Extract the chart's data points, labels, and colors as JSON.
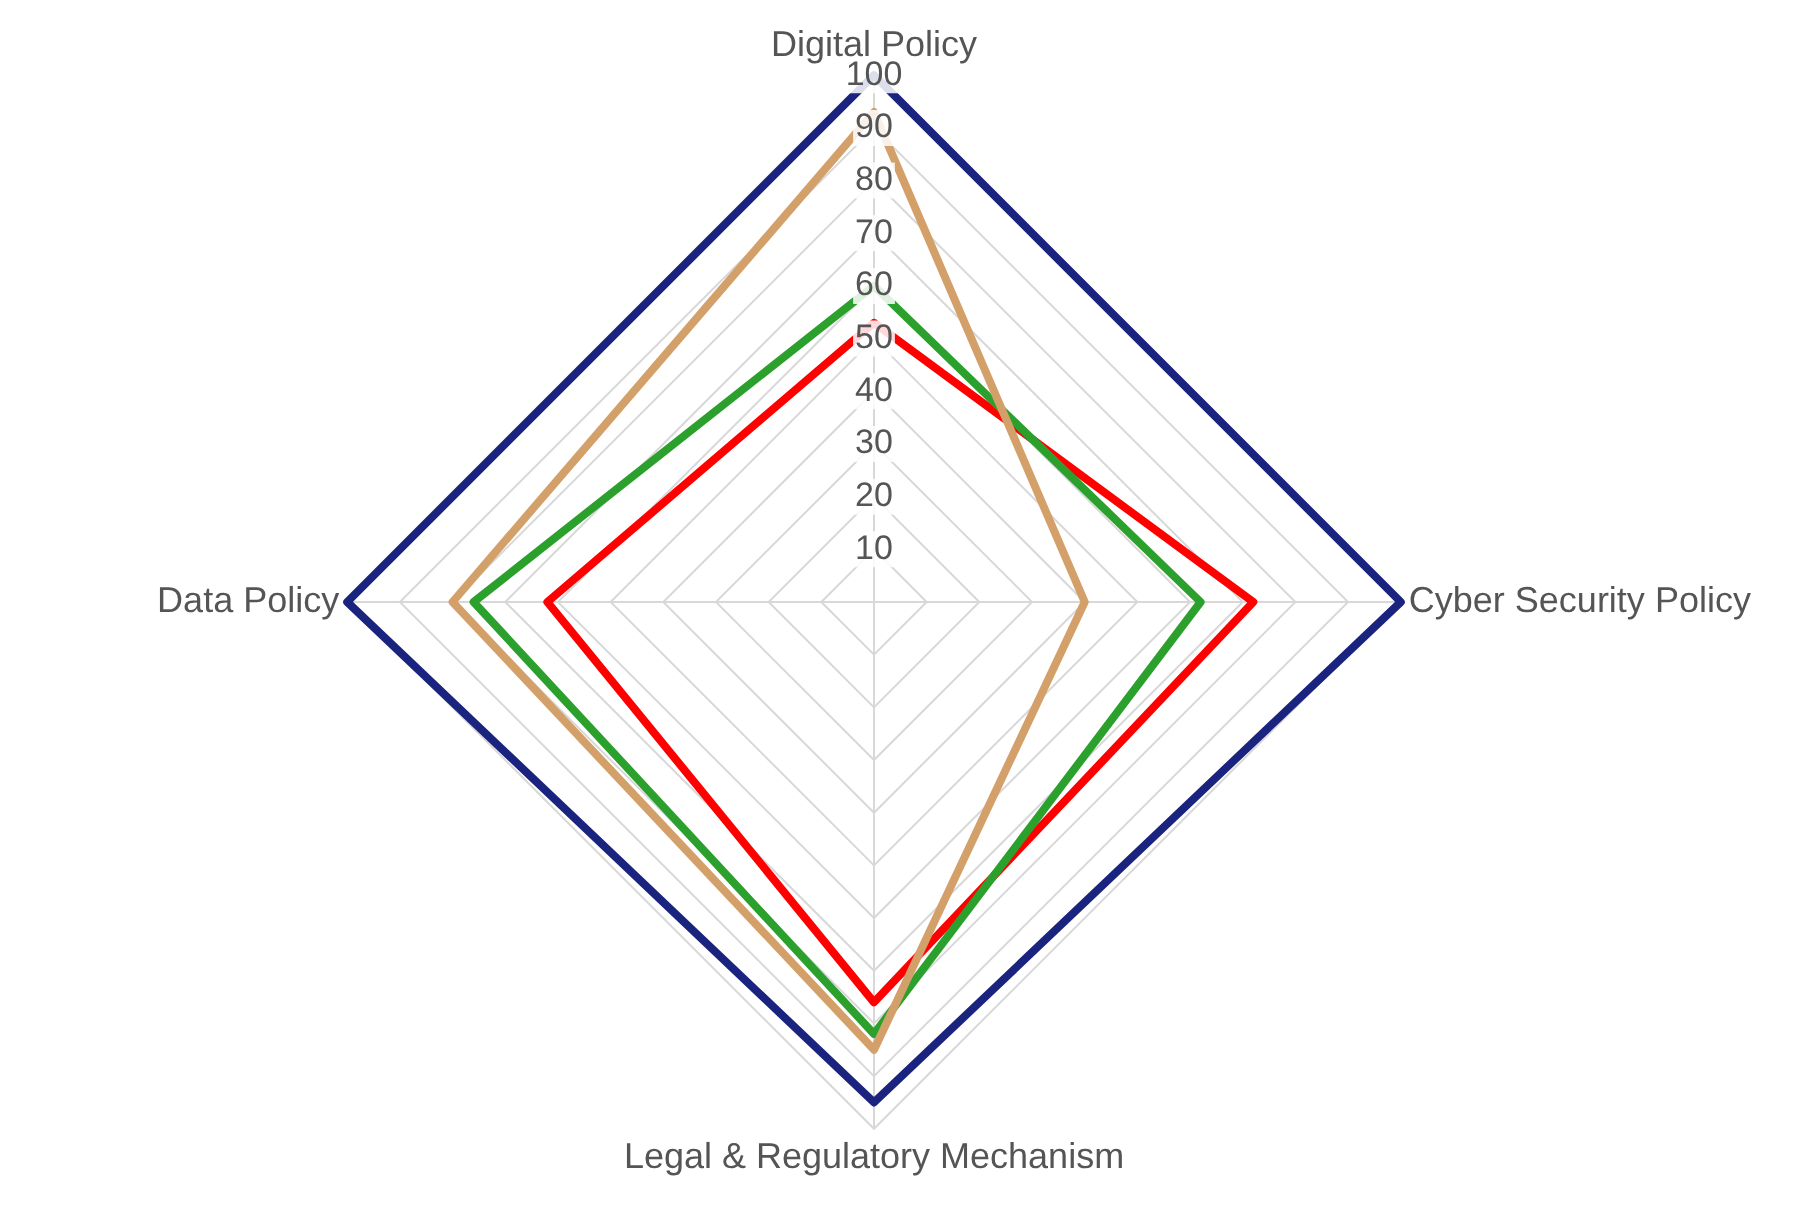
{
  "chart_data": {
    "type": "radar",
    "categories": [
      "Digital Policy",
      "Cyber Security Policy",
      "Legal & Regulatory Mechanism",
      "Data Policy"
    ],
    "series": [
      {
        "color": "#1a237e",
        "values": [
          100,
          100,
          95,
          100
        ]
      },
      {
        "color": "#d4a06a",
        "values": [
          93,
          40,
          85,
          80
        ]
      },
      {
        "color": "#2ca02c",
        "values": [
          60,
          62,
          82,
          76
        ]
      },
      {
        "color": "#ff0000",
        "values": [
          53,
          72,
          76,
          62
        ]
      }
    ],
    "ylim": [
      0,
      100
    ],
    "yticks": [
      10,
      20,
      30,
      40,
      50,
      60,
      70,
      80,
      90,
      100
    ],
    "grid": true,
    "legend": false,
    "marker": "none",
    "line_style": "solid"
  }
}
